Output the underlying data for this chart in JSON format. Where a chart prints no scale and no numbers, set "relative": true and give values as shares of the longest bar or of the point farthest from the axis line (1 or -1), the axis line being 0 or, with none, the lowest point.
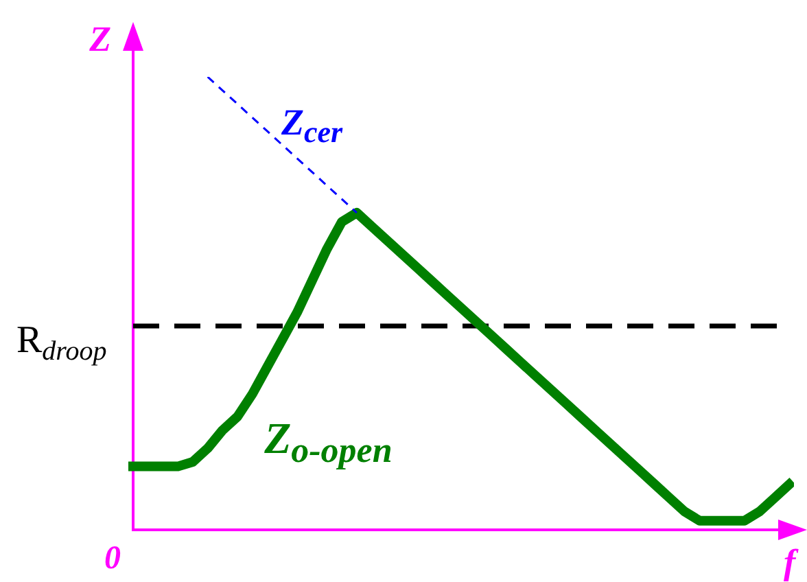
{
  "chart_data": {
    "type": "line",
    "relative": true,
    "xlabel": "f",
    "ylabel": "Z",
    "categories": [
      null,
      null,
      null,
      null,
      null,
      null,
      null,
      null,
      null,
      null,
      null,
      null,
      null,
      null,
      null,
      null,
      null,
      null,
      null,
      null,
      null,
      null,
      null,
      null,
      null,
      null,
      null,
      null,
      null,
      null,
      null,
      null,
      null,
      null,
      null,
      null,
      null,
      null,
      null,
      null,
      null,
      null,
      null,
      null,
      null
    ],
    "series": [
      {
        "name": "Z$_{cer}$",
        "color": "#0000ff",
        "line_style": "dashed",
        "values": [
          null,
          null,
          null,
          null,
          null,
          1,
          0.97,
          0.94,
          0.91,
          0.88,
          0.85,
          0.82,
          0.79,
          0.76,
          0.73,
          0.7,
          null,
          null,
          null,
          null,
          null,
          null,
          null,
          null,
          null,
          null,
          null,
          null,
          null,
          null,
          null,
          null,
          null,
          null,
          null,
          null,
          null,
          null,
          null,
          null,
          null,
          null,
          null,
          null,
          null
        ]
      },
      {
        "name": "Z$_{o-open}$",
        "color": "#008000",
        "values": [
          0.14,
          0.14,
          0.14,
          0.14,
          0.15,
          0.18,
          0.22,
          0.25,
          0.3,
          0.36,
          0.42,
          0.48,
          0.55,
          0.62,
          0.68,
          0.7,
          0.67,
          0.64,
          0.61,
          0.58,
          0.55,
          0.52,
          0.49,
          0.46,
          0.43,
          0.4,
          0.37,
          0.34,
          0.31,
          0.28,
          0.25,
          0.22,
          0.19,
          0.16,
          0.13,
          0.1,
          0.07,
          0.04,
          0.02,
          0.02,
          0.02,
          0.02,
          0.04,
          0.07,
          0.1
        ]
      }
    ],
    "ref_lines": [
      {
        "axis": "y",
        "value": 0.45,
        "label": "R$_{droop}$",
        "color": "#000000",
        "line_style": "dashed"
      }
    ],
    "annotations": [
      "0"
    ],
    "legend": false,
    "grid": false,
    "marker": "none"
  }
}
